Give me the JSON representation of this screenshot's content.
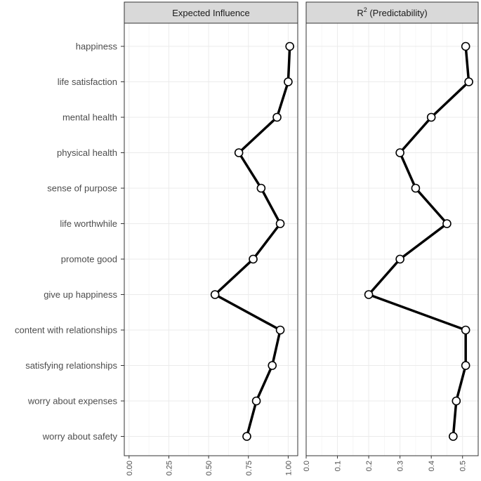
{
  "chart_data": {
    "type": "line",
    "orientation": "horizontal",
    "categories": [
      "happiness",
      "life satisfaction",
      "mental health",
      "physical health",
      "sense of purpose",
      "life worthwhile",
      "promote good",
      "give up happiness",
      "content with relationships",
      "satisfying relationships",
      "worry about expenses",
      "worry about safety"
    ],
    "panels": [
      {
        "title": "Expected Influence",
        "title_superscript": "",
        "title_suffix": "",
        "xlim": [
          -0.03,
          1.06
        ],
        "ticks": [
          "0.00",
          "0.25",
          "0.50",
          "0.75",
          "1.00"
        ],
        "tick_values": [
          0,
          0.25,
          0.5,
          0.75,
          1.0
        ],
        "values": [
          1.01,
          1.0,
          0.93,
          0.69,
          0.83,
          0.95,
          0.78,
          0.54,
          0.95,
          0.9,
          0.8,
          0.74
        ]
      },
      {
        "title": "R",
        "title_superscript": "2",
        "title_suffix": " (Predictability)",
        "xlim": [
          -0.0,
          0.55
        ],
        "ticks": [
          "0.0",
          "0.1",
          "0.2",
          "0.3",
          "0.4",
          "0.5"
        ],
        "tick_values": [
          0,
          0.1,
          0.2,
          0.3,
          0.4,
          0.5
        ],
        "values": [
          0.51,
          0.52,
          0.4,
          0.3,
          0.35,
          0.45,
          0.3,
          0.2,
          0.51,
          0.51,
          0.48,
          0.47
        ]
      }
    ],
    "grid": true,
    "legend": "none"
  }
}
